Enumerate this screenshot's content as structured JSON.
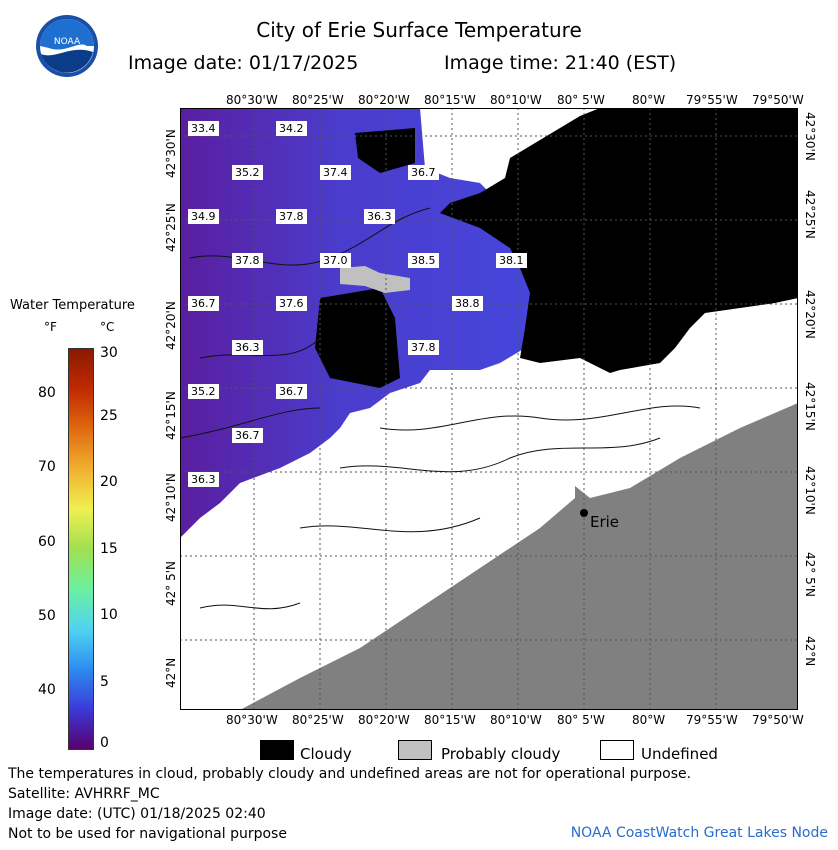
{
  "header": {
    "title": "City of Erie Surface Temperature",
    "image_date": "Image date: 01/17/2025",
    "image_time": "Image time: 21:40 (EST)",
    "logo_text": "NOAA"
  },
  "axes": {
    "top_lon": [
      "80°30'W",
      "80°25'W",
      "80°20'W",
      "80°15'W",
      "80°10'W",
      "80° 5'W",
      "80°W",
      "79°55'W",
      "79°50'W"
    ],
    "bottom_lon": [
      "80°30'W",
      "80°25'W",
      "80°20'W",
      "80°15'W",
      "80°10'W",
      "80° 5'W",
      "80°W",
      "79°55'W",
      "79°50'W"
    ],
    "lat": [
      "42°30'N",
      "42°25'N",
      "42°20'N",
      "42°15'N",
      "42°10'N",
      "42° 5'N",
      "42°N"
    ]
  },
  "map": {
    "city_label": "Erie",
    "temperature_labels": [
      {
        "text": "33.4"
      },
      {
        "text": "34.2"
      },
      {
        "text": "35.2"
      },
      {
        "text": "37.4"
      },
      {
        "text": "36.7"
      },
      {
        "text": "34.9"
      },
      {
        "text": "37.8"
      },
      {
        "text": "36.3"
      },
      {
        "text": "37.8"
      },
      {
        "text": "37.0"
      },
      {
        "text": "38.5"
      },
      {
        "text": "38.1"
      },
      {
        "text": "36.7"
      },
      {
        "text": "37.6"
      },
      {
        "text": "38.8"
      },
      {
        "text": "36.3"
      },
      {
        "text": "37.8"
      },
      {
        "text": "35.2"
      },
      {
        "text": "36.7"
      },
      {
        "text": "36.7"
      },
      {
        "text": "36.3"
      }
    ],
    "colors": {
      "cloudy": "#000000",
      "probably_cloudy": "#c0c0c0",
      "undefined": "#ffffff",
      "land": "#808080",
      "water_cold": "#5a1ea0",
      "water_mid": "#4545d8"
    }
  },
  "legend": {
    "title": "Water Temperature",
    "unit_f": "°F",
    "unit_c": "°C",
    "fahrenheit_ticks": [
      "80",
      "70",
      "60",
      "50",
      "40"
    ],
    "celsius_ticks": [
      "30",
      "25",
      "20",
      "15",
      "10",
      "5",
      "0"
    ],
    "colorbar_gradient": [
      "#5a006e",
      "#3a3ad8",
      "#2e8cf0",
      "#4fd4f0",
      "#6cf0a0",
      "#a0e050",
      "#f0f050",
      "#f0b030",
      "#e06a10",
      "#c02a00",
      "#8a1a00"
    ]
  },
  "key": {
    "cloudy": "Cloudy",
    "probably_cloudy": "Probably cloudy",
    "undefined": "Undefined"
  },
  "footer": {
    "line1": "The temperatures in cloud, probably cloudy and undefined areas are not for operational purpose.",
    "line2": "Satellite: AVHRRF_MC",
    "line3": "Image date: (UTC) 01/18/2025  02:40",
    "line4": "Not to be used for navigational purpose",
    "credit": "NOAA CoastWatch Great Lakes Node"
  }
}
